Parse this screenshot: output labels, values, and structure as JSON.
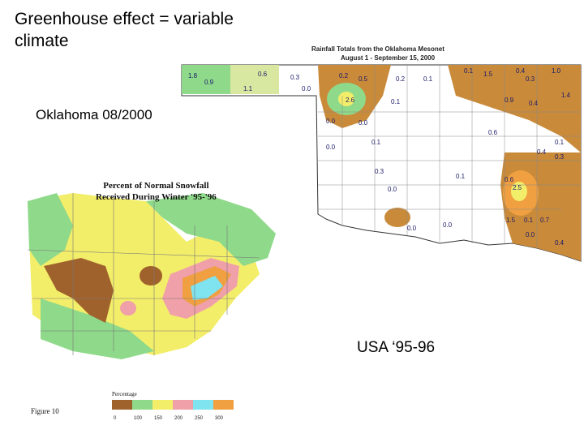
{
  "slide": {
    "title": "Greenhouse effect = variable climate",
    "oklahoma_caption": "Oklahoma 08/2000",
    "usa_caption": "USA ‘95-96"
  },
  "oklahoma_map": {
    "title_line1": "Rainfall Totals from the Oklahoma Mesonet",
    "title_line2": "August 1 - September 15, 2000",
    "labels": [
      "1.8",
      "0.9",
      "1.1",
      "0.6",
      "0.3",
      "0.0",
      "0.2",
      "0.5",
      "0.2",
      "0.1",
      "0.1",
      "1.5",
      "0.4",
      "0.3",
      "1.0",
      "2.6",
      "0.0",
      "0.0",
      "0.1",
      "0.9",
      "0.4",
      "1.4",
      "0.1",
      "0.0",
      "0.3",
      "0.6",
      "0.1",
      "0.0",
      "0.1",
      "0.6",
      "0.4",
      "0.3",
      "2.5",
      "1.5",
      "0.1",
      "0.7",
      "0.0",
      "0.0",
      "0.0",
      "0.4"
    ]
  },
  "snow_map": {
    "title_line1": "Percent of Normal Snowfall",
    "title_line2": "Received During Winter '95-'96",
    "legend_title": "Percentage",
    "legend_ticks": [
      "0",
      "100",
      "150",
      "200",
      "250",
      "300"
    ],
    "figure_label": "Figure 10"
  },
  "colors": {
    "brown": "#a0622c",
    "green": "#8fd98a",
    "yellow": "#f3ee6a",
    "pink": "#f0a0a8",
    "cyan": "#7fe3f0",
    "orange": "#f0a040",
    "ok_dry": "#ffffff",
    "ok_wet": "#c98a3a"
  }
}
